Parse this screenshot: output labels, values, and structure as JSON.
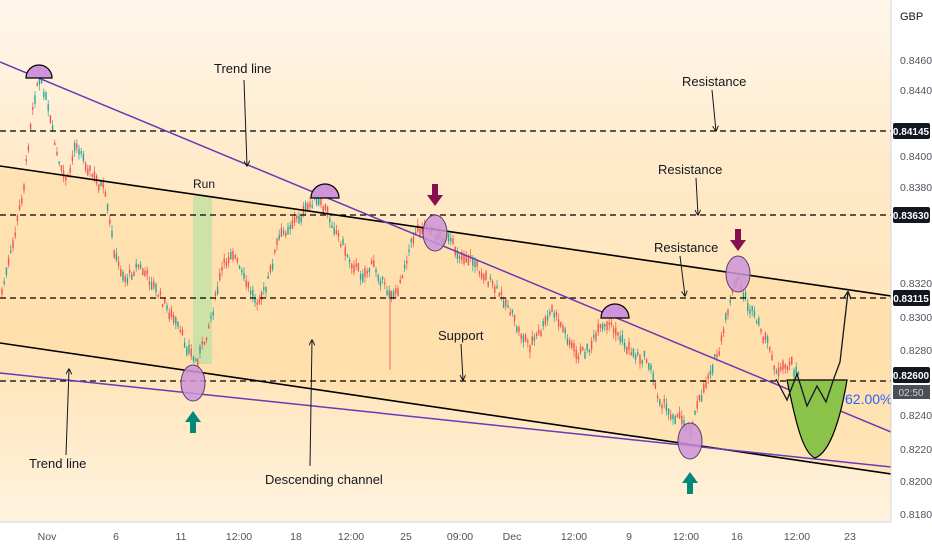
{
  "chart_data": {
    "type": "candlestick",
    "currency": "GBP",
    "y_axis": {
      "ticks": [
        "0.84600",
        "0.84400",
        "0.84000",
        "0.83800",
        "0.83200",
        "0.83000",
        "0.82800",
        "0.82400",
        "0.82200",
        "0.82000",
        "0.81800"
      ],
      "range": [
        0.8176,
        0.8477
      ],
      "scale": "linear",
      "side": "right"
    },
    "x_axis": {
      "ticks": [
        "Nov",
        "6",
        "11",
        "12:00",
        "18",
        "12:00",
        "25",
        "09:00",
        "Dec",
        "12:00",
        "9",
        "12:00",
        "16",
        "12:00",
        "23"
      ]
    },
    "price_labels": [
      {
        "value": "0.84145",
        "style": "dark"
      },
      {
        "value": "0.83630",
        "style": "dark"
      },
      {
        "value": "0.83115",
        "style": "dark"
      },
      {
        "value": "0.82600",
        "style": "dark"
      },
      {
        "value": "02:50",
        "style": "sub"
      }
    ],
    "horizontal_levels": [
      0.84145,
      0.8363,
      0.83115,
      0.826
    ],
    "annotations": {
      "trend_line_top": "Trend line",
      "trend_line_bottom": "Trend line",
      "resistance_1": "Resistance",
      "resistance_2": "Resistance",
      "resistance_3": "Resistance",
      "support": "Support",
      "run": "Run",
      "channel": "Descending channel",
      "fib": "62.00%"
    },
    "grid": false,
    "colors": {
      "up": "#26a69a",
      "down": "#ef5350",
      "channel_line": "#000000",
      "trend_line": "#673ab7",
      "highlight": "#ce93d8",
      "arrow_down": "#880e4f",
      "arrow_up": "#00897b",
      "run_zone": "#c5e1a5",
      "projection": "#8bc34a",
      "fib_text": "#2962ff"
    }
  }
}
